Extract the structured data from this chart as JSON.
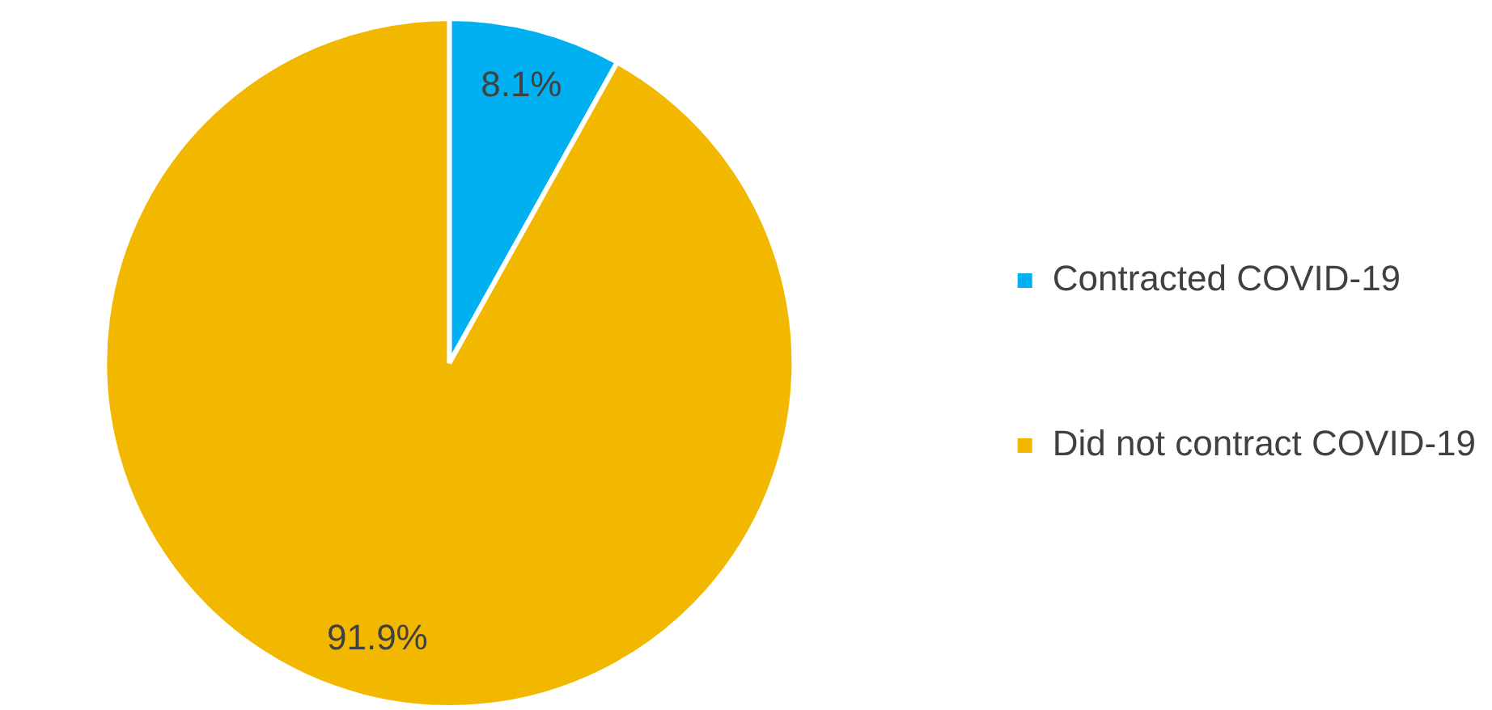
{
  "chart_data": {
    "type": "pie",
    "categories": [
      "Contracted COVID-19",
      "Did not contract COVID-19"
    ],
    "values": [
      8.1,
      91.9
    ],
    "colors": [
      "#00b0f0",
      "#f2b800"
    ],
    "value_labels": [
      "8.1%",
      "91.9%"
    ],
    "legend": "right"
  }
}
